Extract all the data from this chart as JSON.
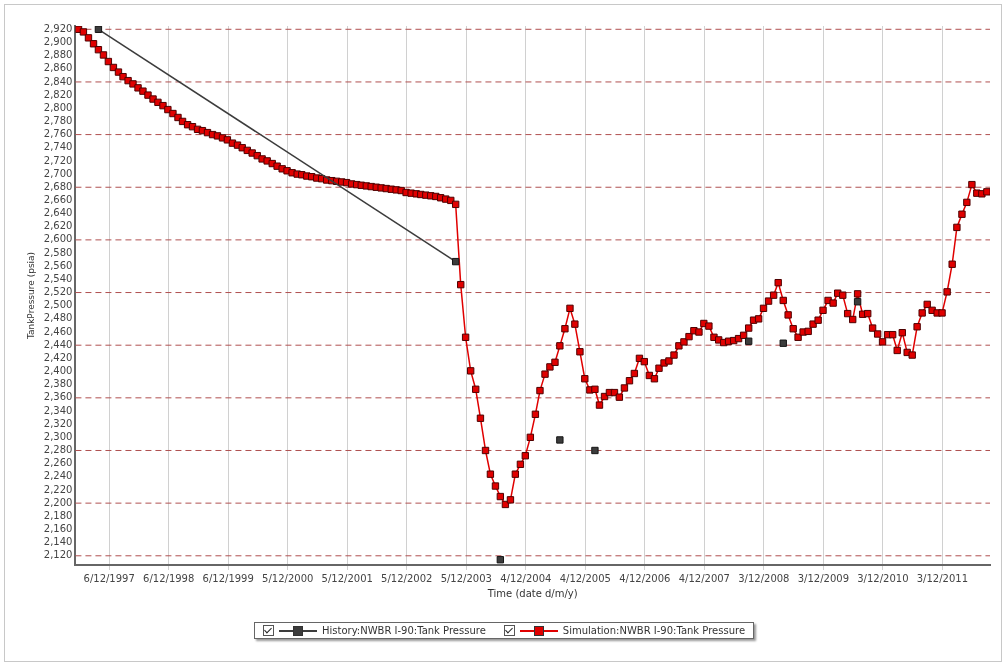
{
  "chart_data": {
    "type": "line",
    "xlabel": "Time (date d/m/y)",
    "ylabel": "TankPressure (psia)",
    "xlim": [
      "1997-05-13",
      "2012-09-20"
    ],
    "xticks": [
      {
        "value": "1997-12-06",
        "label": "6/12/1997"
      },
      {
        "value": "1998-12-06",
        "label": "6/12/1998"
      },
      {
        "value": "1999-12-06",
        "label": "6/12/1999"
      },
      {
        "value": "2000-12-05",
        "label": "5/12/2000"
      },
      {
        "value": "2001-12-05",
        "label": "5/12/2001"
      },
      {
        "value": "2002-12-05",
        "label": "5/12/2002"
      },
      {
        "value": "2003-12-05",
        "label": "5/12/2003"
      },
      {
        "value": "2004-12-04",
        "label": "4/12/2004"
      },
      {
        "value": "2005-12-04",
        "label": "4/12/2005"
      },
      {
        "value": "2006-12-04",
        "label": "4/12/2006"
      },
      {
        "value": "2007-12-04",
        "label": "4/12/2007"
      },
      {
        "value": "2008-12-03",
        "label": "3/12/2008"
      },
      {
        "value": "2009-12-03",
        "label": "3/12/2009"
      },
      {
        "value": "2010-12-03",
        "label": "3/12/2010"
      },
      {
        "value": "2011-12-03",
        "label": "3/12/2011"
      }
    ],
    "ylim": [
      2106,
      2925
    ],
    "yticks": [
      {
        "value": 2120,
        "label": "2,120"
      },
      {
        "value": 2140,
        "label": "2,140"
      },
      {
        "value": 2160,
        "label": "2,160"
      },
      {
        "value": 2180,
        "label": "2,180"
      },
      {
        "value": 2200,
        "label": "2,200"
      },
      {
        "value": 2220,
        "label": "2,220"
      },
      {
        "value": 2240,
        "label": "2,240"
      },
      {
        "value": 2260,
        "label": "2,260"
      },
      {
        "value": 2280,
        "label": "2,280"
      },
      {
        "value": 2300,
        "label": "2,300"
      },
      {
        "value": 2320,
        "label": "2,320"
      },
      {
        "value": 2340,
        "label": "2,340"
      },
      {
        "value": 2360,
        "label": "2,360"
      },
      {
        "value": 2380,
        "label": "2,380"
      },
      {
        "value": 2400,
        "label": "2,400"
      },
      {
        "value": 2420,
        "label": "2,420"
      },
      {
        "value": 2440,
        "label": "2,440"
      },
      {
        "value": 2460,
        "label": "2,460"
      },
      {
        "value": 2480,
        "label": "2,480"
      },
      {
        "value": 2500,
        "label": "2,500"
      },
      {
        "value": 2520,
        "label": "2,520"
      },
      {
        "value": 2540,
        "label": "2,540"
      },
      {
        "value": 2560,
        "label": "2,560"
      },
      {
        "value": 2580,
        "label": "2,580"
      },
      {
        "value": 2600,
        "label": "2,600"
      },
      {
        "value": 2620,
        "label": "2,620"
      },
      {
        "value": 2640,
        "label": "2,640"
      },
      {
        "value": 2660,
        "label": "2,660"
      },
      {
        "value": 2680,
        "label": "2,680"
      },
      {
        "value": 2700,
        "label": "2,700"
      },
      {
        "value": 2720,
        "label": "2,720"
      },
      {
        "value": 2740,
        "label": "2,740"
      },
      {
        "value": 2760,
        "label": "2,760"
      },
      {
        "value": 2780,
        "label": "2,780"
      },
      {
        "value": 2800,
        "label": "2,800"
      },
      {
        "value": 2820,
        "label": "2,820"
      },
      {
        "value": 2840,
        "label": "2,840"
      },
      {
        "value": 2860,
        "label": "2,860"
      },
      {
        "value": 2880,
        "label": "2,880"
      },
      {
        "value": 2900,
        "label": "2,900"
      },
      {
        "value": 2920,
        "label": "2,920"
      }
    ],
    "grid": "x",
    "legend": "bottom",
    "marker": "square",
    "line_style": "solid",
    "ref_lines": [
      {
        "axis": "y",
        "value": 2120,
        "color": "#b05050",
        "line_style": "dashed"
      },
      {
        "axis": "y",
        "value": 2200,
        "color": "#b05050",
        "line_style": "dashed"
      },
      {
        "axis": "y",
        "value": 2280,
        "color": "#b05050",
        "line_style": "dashed"
      },
      {
        "axis": "y",
        "value": 2360,
        "color": "#b05050",
        "line_style": "dashed"
      },
      {
        "axis": "y",
        "value": 2440,
        "color": "#b05050",
        "line_style": "dashed"
      },
      {
        "axis": "y",
        "value": 2520,
        "color": "#b05050",
        "line_style": "dashed"
      },
      {
        "axis": "y",
        "value": 2600,
        "color": "#b05050",
        "line_style": "dashed"
      },
      {
        "axis": "y",
        "value": 2680,
        "color": "#b05050",
        "line_style": "dashed"
      },
      {
        "axis": "y",
        "value": 2760,
        "color": "#b05050",
        "line_style": "dashed"
      },
      {
        "axis": "y",
        "value": 2840,
        "color": "#b05050",
        "line_style": "dashed"
      },
      {
        "axis": "y",
        "value": 2920,
        "color": "#b05050",
        "line_style": "dashed"
      }
    ],
    "series": [
      {
        "name": "History:NWBR I-90:Tank Pressure",
        "color": "#3c3c3c",
        "x": [
          "1997-10",
          "2003-10",
          "2004-02",
          "2004-07",
          "2005-01",
          "2005-07",
          "2005-10",
          "2006-02",
          "2007-06",
          "2008-09",
          "2009-01",
          "2009-04",
          "2009-11",
          "2010-07"
        ],
        "values": [
          2920,
          2567,
          null,
          2114,
          null,
          2296,
          null,
          2280,
          null,
          2446,
          null,
          2443,
          null,
          2506
        ]
      },
      {
        "name": "Simulation:NWBR I-90:Tank Pressure",
        "color": "#e00000",
        "x": [
          "1997-06",
          "1997-07",
          "1997-08",
          "1997-09",
          "1997-10",
          "1997-11",
          "1997-12",
          "1998-01",
          "1998-02",
          "1998-03",
          "1998-04",
          "1998-05",
          "1998-06",
          "1998-07",
          "1998-08",
          "1998-09",
          "1998-10",
          "1998-11",
          "1998-12",
          "1999-01",
          "1999-02",
          "1999-03",
          "1999-04",
          "1999-05",
          "1999-06",
          "1999-07",
          "1999-08",
          "1999-09",
          "1999-10",
          "1999-11",
          "1999-12",
          "2000-01",
          "2000-02",
          "2000-03",
          "2000-04",
          "2000-05",
          "2000-06",
          "2000-07",
          "2000-08",
          "2000-09",
          "2000-10",
          "2000-11",
          "2000-12",
          "2001-01",
          "2001-02",
          "2001-03",
          "2001-04",
          "2001-05",
          "2001-06",
          "2001-07",
          "2001-08",
          "2001-09",
          "2001-10",
          "2001-11",
          "2001-12",
          "2002-01",
          "2002-02",
          "2002-03",
          "2002-04",
          "2002-05",
          "2002-06",
          "2002-07",
          "2002-08",
          "2002-09",
          "2002-10",
          "2002-11",
          "2002-12",
          "2003-01",
          "2003-02",
          "2003-03",
          "2003-04",
          "2003-05",
          "2003-06",
          "2003-07",
          "2003-08",
          "2003-09",
          "2003-10",
          "2003-11",
          "2003-12",
          "2004-01",
          "2004-02",
          "2004-03",
          "2004-04",
          "2004-05",
          "2004-06",
          "2004-07",
          "2004-08",
          "2004-09",
          "2004-10",
          "2004-11",
          "2004-12",
          "2005-01",
          "2005-02",
          "2005-03",
          "2005-04",
          "2005-05",
          "2005-06",
          "2005-07",
          "2005-08",
          "2005-09",
          "2005-10",
          "2005-11",
          "2005-12",
          "2006-01",
          "2006-02",
          "2006-03",
          "2006-04",
          "2006-05",
          "2006-06",
          "2006-07",
          "2006-08",
          "2006-09",
          "2006-10",
          "2006-11",
          "2006-12",
          "2007-01",
          "2007-02",
          "2007-03",
          "2007-04",
          "2007-05",
          "2007-06",
          "2007-07",
          "2007-08",
          "2007-09",
          "2007-10",
          "2007-11",
          "2007-12",
          "2008-01",
          "2008-02",
          "2008-03",
          "2008-04",
          "2008-05",
          "2008-06",
          "2008-07",
          "2008-08",
          "2008-09",
          "2008-10",
          "2008-11",
          "2008-12",
          "2009-01",
          "2009-02",
          "2009-03",
          "2009-04",
          "2009-05",
          "2009-06",
          "2009-07",
          "2009-08",
          "2009-09",
          "2009-10",
          "2009-11",
          "2009-12",
          "2010-01",
          "2010-02",
          "2010-03",
          "2010-04",
          "2010-05",
          "2010-06",
          "2010-07",
          "2010-08",
          "2010-09",
          "2010-10",
          "2010-11",
          "2010-12",
          "2011-01",
          "2011-02",
          "2011-03",
          "2011-04",
          "2011-05",
          "2011-06",
          "2011-07",
          "2011-08",
          "2011-09",
          "2011-10",
          "2011-11",
          "2011-12",
          "2012-01",
          "2012-02",
          "2012-03",
          "2012-04",
          "2012-05",
          "2012-06",
          "2012-07",
          "2012-08",
          "2012-09"
        ],
        "values": [
          2920,
          2916,
          2907,
          2898,
          2889,
          2881,
          2871,
          2862,
          2855,
          2848,
          2842,
          2837,
          2831,
          2826,
          2820,
          2814,
          2809,
          2804,
          2798,
          2792,
          2786,
          2780,
          2775,
          2772,
          2768,
          2766,
          2763,
          2760,
          2758,
          2755,
          2752,
          2747,
          2744,
          2740,
          2736,
          2732,
          2728,
          2723,
          2720,
          2716,
          2712,
          2708,
          2705,
          2702,
          2700,
          2699,
          2697,
          2696,
          2694,
          2693,
          2691,
          2690,
          2689,
          2688,
          2687,
          2685,
          2684,
          2683,
          2682,
          2681,
          2680,
          2679,
          2678,
          2677,
          2676,
          2675,
          2672,
          2671,
          2670,
          2669,
          2668,
          2667,
          2666,
          2664,
          2662,
          2660,
          2654,
          2532,
          2452,
          2401,
          2373,
          2329,
          2280,
          2244,
          2226,
          2210,
          2198,
          2205,
          2244,
          2259,
          2272,
          2300,
          2335,
          2371,
          2396,
          2407,
          2414,
          2439,
          2465,
          2496,
          2472,
          2430,
          2389,
          2372,
          2373,
          2349,
          2362,
          2368,
          2368,
          2361,
          2375,
          2386,
          2397,
          2420,
          2415,
          2394,
          2389,
          2405,
          2413,
          2416,
          2425,
          2439,
          2445,
          2453,
          2462,
          2460,
          2473,
          2469,
          2452,
          2448,
          2444,
          2446,
          2447,
          2450,
          2455,
          2466,
          2478,
          2480,
          2496,
          2507,
          2516,
          2535,
          2508,
          2486,
          2465,
          2452,
          2460,
          2461,
          2472,
          2478,
          2493,
          2508,
          2504,
          2519,
          2516,
          2488,
          2479,
          2518,
          2487,
          2488,
          2466,
          2457,
          2445,
          2456,
          2456,
          2432,
          2459,
          2429,
          2425,
          2468,
          2489,
          2502,
          2493,
          2489,
          2489,
          2521,
          2563,
          2619,
          2639,
          2657,
          2684,
          2671,
          2670,
          2673
        ]
      }
    ]
  }
}
